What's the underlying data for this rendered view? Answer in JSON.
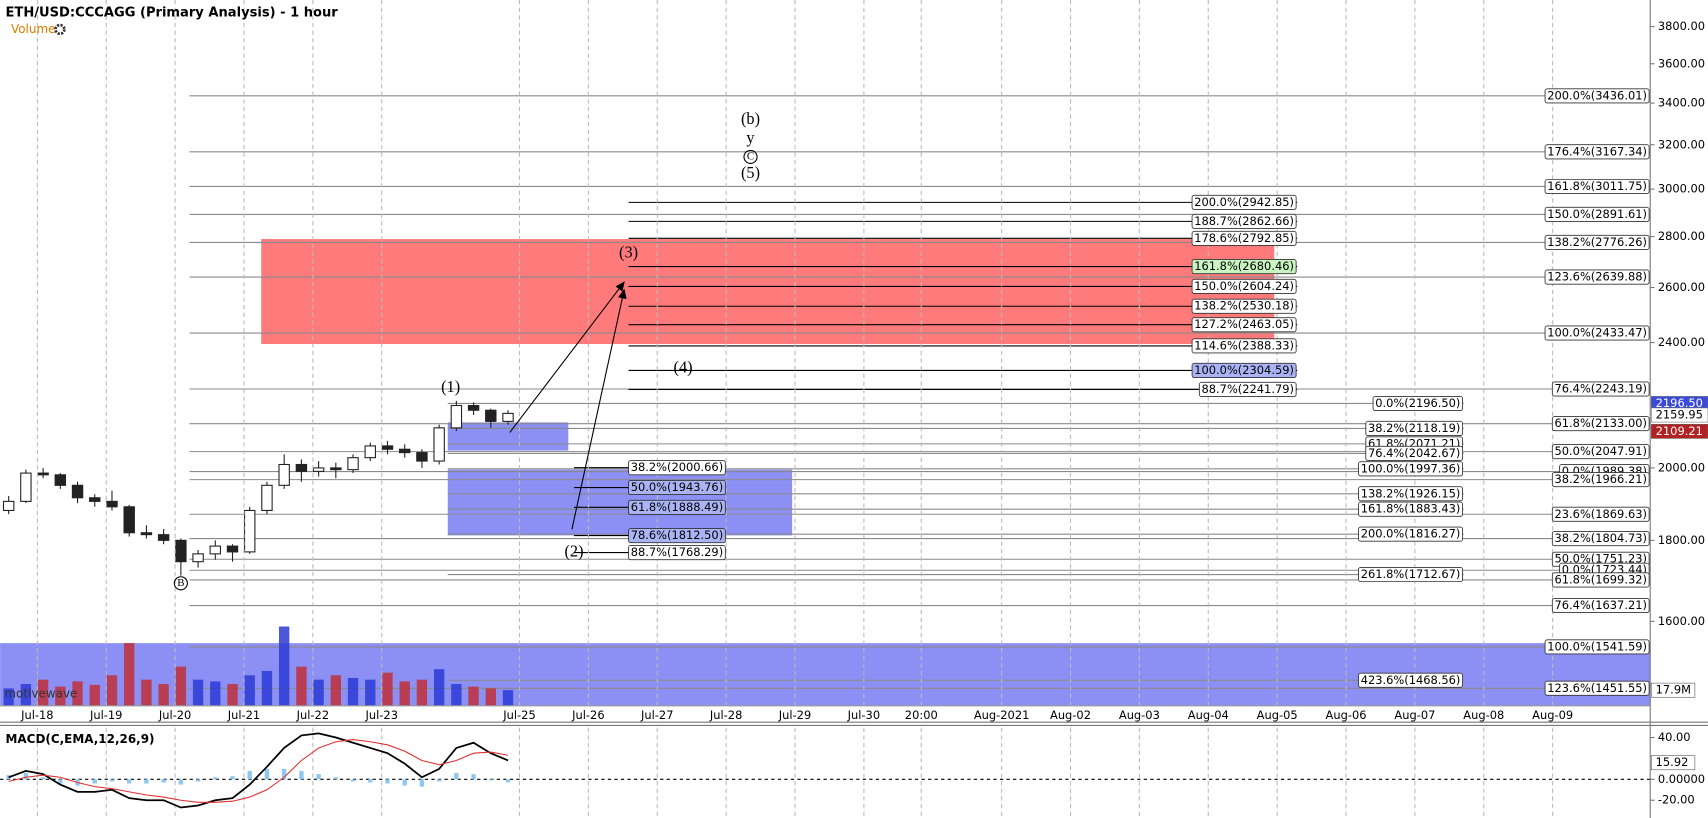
{
  "chart_data": {
    "type": "candlestick",
    "title": "ETH/USD:CCCAGG (Primary Analysis) - 1 hour",
    "volume_label": "Volume",
    "watermark": "motivewave",
    "log_scale": true,
    "xlim": [
      "2021-07-17T11:00",
      "2021-08-10T10:00"
    ],
    "xticks": [
      {
        "value": "2021-07-18T00:00",
        "label": "Jul-18"
      },
      {
        "value": "2021-07-19T00:00",
        "label": "Jul-19"
      },
      {
        "value": "2021-07-20T00:00",
        "label": "Jul-20"
      },
      {
        "value": "2021-07-21T00:00",
        "label": "Jul-21"
      },
      {
        "value": "2021-07-22T00:00",
        "label": "Jul-22"
      },
      {
        "value": "2021-07-23T00:00",
        "label": "Jul-23"
      },
      {
        "value": "2021-07-25T00:00",
        "label": "Jul-25"
      },
      {
        "value": "2021-07-26T00:00",
        "label": "Jul-26"
      },
      {
        "value": "2021-07-27T00:00",
        "label": "Jul-27"
      },
      {
        "value": "2021-07-28T00:00",
        "label": "Jul-28"
      },
      {
        "value": "2021-07-29T00:00",
        "label": "Jul-29"
      },
      {
        "value": "2021-07-30T00:00",
        "label": "Jul-30"
      },
      {
        "value": "2021-07-30T20:00",
        "label": "20:00"
      },
      {
        "value": "2021-08-01T00:00",
        "label": "Aug-2021"
      },
      {
        "value": "2021-08-02T00:00",
        "label": "Aug-02"
      },
      {
        "value": "2021-08-03T00:00",
        "label": "Aug-03"
      },
      {
        "value": "2021-08-04T00:00",
        "label": "Aug-04"
      },
      {
        "value": "2021-08-05T00:00",
        "label": "Aug-05"
      },
      {
        "value": "2021-08-06T00:00",
        "label": "Aug-06"
      },
      {
        "value": "2021-08-07T00:00",
        "label": "Aug-07"
      },
      {
        "value": "2021-08-08T00:00",
        "label": "Aug-08"
      },
      {
        "value": "2021-08-09T00:00",
        "label": "Aug-09"
      }
    ],
    "ylim": [
      1415,
      3950
    ],
    "yticks": [
      {
        "value": 1600,
        "label": "1600.00"
      },
      {
        "value": 1800,
        "label": "1800.00"
      },
      {
        "value": 2000,
        "label": "2000.00"
      },
      {
        "value": 2400,
        "label": "2400.00"
      },
      {
        "value": 2600,
        "label": "2600.00"
      },
      {
        "value": 2800,
        "label": "2800.00"
      },
      {
        "value": 3000,
        "label": "3000.00"
      },
      {
        "value": 3200,
        "label": "3200.00"
      },
      {
        "value": 3400,
        "label": "3400.00"
      },
      {
        "value": 3600,
        "label": "3600.00"
      },
      {
        "value": 3800,
        "label": "3800.00"
      }
    ],
    "x": [
      "2021-07-17T14:00",
      "2021-07-17T20:00",
      "2021-07-18T02:00",
      "2021-07-18T08:00",
      "2021-07-18T14:00",
      "2021-07-18T20:00",
      "2021-07-19T02:00",
      "2021-07-19T08:00",
      "2021-07-19T14:00",
      "2021-07-19T20:00",
      "2021-07-20T02:00",
      "2021-07-20T08:00",
      "2021-07-20T14:00",
      "2021-07-20T20:00",
      "2021-07-21T02:00",
      "2021-07-21T08:00",
      "2021-07-21T14:00",
      "2021-07-21T20:00",
      "2021-07-22T02:00",
      "2021-07-22T08:00",
      "2021-07-22T14:00",
      "2021-07-22T20:00",
      "2021-07-23T02:00",
      "2021-07-23T08:00",
      "2021-07-23T14:00",
      "2021-07-23T20:00",
      "2021-07-24T02:00",
      "2021-07-24T08:00",
      "2021-07-24T14:00",
      "2021-07-24T20:00"
    ],
    "open": [
      1880,
      1905,
      1985,
      1980,
      1950,
      1915,
      1905,
      1890,
      1820,
      1815,
      1800,
      1745,
      1765,
      1785,
      1770,
      1880,
      1950,
      2010,
      1990,
      2000,
      1995,
      2030,
      2065,
      2055,
      2045,
      2020,
      2120,
      2190,
      2175,
      2140
    ],
    "high": [
      1920,
      1995,
      2000,
      1985,
      1960,
      1925,
      1935,
      1895,
      1840,
      1830,
      1805,
      1775,
      1800,
      1790,
      1890,
      1960,
      2040,
      2025,
      2020,
      2015,
      2040,
      2075,
      2080,
      2070,
      2055,
      2130,
      2205,
      2200,
      2180,
      2175
    ],
    "low": [
      1870,
      1900,
      1970,
      1940,
      1900,
      1890,
      1880,
      1810,
      1805,
      1790,
      1710,
      1730,
      1750,
      1745,
      1765,
      1870,
      1940,
      1960,
      1975,
      1970,
      1985,
      2020,
      2040,
      2030,
      2000,
      2010,
      2110,
      2160,
      2120,
      2130
    ],
    "close": [
      1905,
      1985,
      1980,
      1950,
      1915,
      1905,
      1890,
      1820,
      1815,
      1800,
      1745,
      1765,
      1785,
      1770,
      1880,
      1950,
      2010,
      1990,
      2000,
      1995,
      2030,
      2065,
      2055,
      2045,
      2020,
      2120,
      2190,
      2175,
      2140,
      2165
    ],
    "candle_color": "#222222",
    "volume": {
      "values": [
        20,
        25,
        30,
        22,
        28,
        24,
        35,
        72,
        30,
        25,
        45,
        30,
        28,
        25,
        35,
        40,
        91,
        45,
        30,
        35,
        32,
        30,
        38,
        28,
        30,
        42,
        25,
        22,
        20,
        18
      ],
      "ylim": [
        0,
        100
      ],
      "up_color": "#2b3bd6",
      "down_color": "#c0303a",
      "marker": {
        "value": 17.9,
        "label": "17.9M"
      }
    },
    "price_markers": [
      {
        "value": 2196.5,
        "label": "2196.50",
        "color": "#3b4bd8"
      },
      {
        "value": 2159.95,
        "label": "2159.95",
        "color": "#ffffff"
      },
      {
        "value": 2109.21,
        "label": "2109.21",
        "color": "#b22222"
      }
    ],
    "zones": [
      {
        "start": "2021-07-21T06:00",
        "end": "2021-08-04T23:00",
        "top": 2790,
        "bottom": 2395,
        "color": "#ff5a5a"
      },
      {
        "start": "2021-07-23T23:00",
        "end": "2021-07-25T17:00",
        "top": 2137,
        "bottom": 2051,
        "color": "#6f73f0"
      },
      {
        "start": "2021-07-23T23:00",
        "end": "2021-07-28T23:00",
        "top": 1995,
        "bottom": 1813,
        "color": "#6f73f0"
      },
      {
        "start": "2021-07-17T11:00",
        "end": "2021-08-10T10:00",
        "top": 1550,
        "bottom": 1415,
        "color": "#6f73f0"
      }
    ],
    "fib_groups": [
      {
        "start": "2021-07-20T05:00",
        "end": "2021-08-10T10:00",
        "line_color": "#8a8a8a",
        "label_anchor": "end",
        "levels": [
          {
            "value": 3436.01,
            "label": "200.0%(3436.01)"
          },
          {
            "value": 3167.34,
            "label": "176.4%(3167.34)"
          },
          {
            "value": 3011.75,
            "label": "161.8%(3011.75)"
          },
          {
            "value": 2891.61,
            "label": "150.0%(2891.61)"
          },
          {
            "value": 2776.26,
            "label": "138.2%(2776.26)"
          },
          {
            "value": 2639.88,
            "label": "123.6%(2639.88)"
          },
          {
            "value": 2433.47,
            "label": "100.0%(2433.47)"
          },
          {
            "value": 2243.19,
            "label": "76.4%(2243.19)"
          },
          {
            "value": 2133,
            "label": "61.8%(2133.00)"
          },
          {
            "value": 2047.91,
            "label": "50.0%(2047.91)"
          },
          {
            "value": 1989.38,
            "label": "0.0%(1989.38)"
          },
          {
            "value": 1966.21,
            "label": "38.2%(1966.21)"
          },
          {
            "value": 1869.63,
            "label": "23.6%(1869.63)"
          },
          {
            "value": 1804.73,
            "label": "38.2%(1804.73)"
          },
          {
            "value": 1751.23,
            "label": "50.0%(1751.23)"
          },
          {
            "value": 1723.44,
            "label": "0.0%(1723.44)"
          },
          {
            "value": 1699.32,
            "label": "61.8%(1699.32)"
          },
          {
            "value": 1637.21,
            "label": "76.4%(1637.21)"
          },
          {
            "value": 1541.59,
            "label": "100.0%(1541.59)"
          },
          {
            "value": 1451.55,
            "label": "123.6%(1451.55)"
          }
        ]
      },
      {
        "start": "2021-07-23T23:00",
        "end": "2021-08-07T17:00",
        "line_color": "#8a8a8a",
        "label_anchor": "end",
        "levels": [
          {
            "value": 2196.5,
            "label": "0.0%(2196.50)"
          },
          {
            "value": 2118.19,
            "label": "38.2%(2118.19)"
          },
          {
            "value": 2071.21,
            "label": "61.8%(2071.21)"
          },
          {
            "value": 2042.67,
            "label": "76.4%(2042.67)"
          },
          {
            "value": 1997.36,
            "label": "100.0%(1997.36)"
          },
          {
            "value": 1926.15,
            "label": "138.2%(1926.15)"
          },
          {
            "value": 1883.43,
            "label": "161.8%(1883.43)"
          },
          {
            "value": 1816.27,
            "label": "200.0%(1816.27)"
          },
          {
            "value": 1712.67,
            "label": "261.8%(1712.67)"
          },
          {
            "value": 1468.56,
            "label": "423.6%(1468.56)"
          }
        ]
      },
      {
        "start": "2021-07-26T14:00",
        "end": "2021-08-05T07:00",
        "line_color": "#000000",
        "label_anchor": "end",
        "levels": [
          {
            "value": 2942.85,
            "label": "200.0%(2942.85)"
          },
          {
            "value": 2862.66,
            "label": "188.7%(2862.66)"
          },
          {
            "value": 2792.85,
            "label": "178.6%(2792.85)"
          },
          {
            "value": 2680.46,
            "label": "161.8%(2680.46)",
            "fill": "#c8f5c0"
          },
          {
            "value": 2604.24,
            "label": "150.0%(2604.24)"
          },
          {
            "value": 2530.18,
            "label": "138.2%(2530.18)"
          },
          {
            "value": 2463.05,
            "label": "127.2%(2463.05)"
          },
          {
            "value": 2388.33,
            "label": "114.6%(2388.33)"
          },
          {
            "value": 2304.59,
            "label": "100.0%(2304.59)",
            "fill": "#aab4f5"
          },
          {
            "value": 2241.79,
            "label": "88.7%(2241.79)"
          }
        ]
      },
      {
        "start": "2021-07-25T19:00",
        "end": "2021-07-26T14:00",
        "line_color": "#000000",
        "label_anchor": "start",
        "levels": [
          {
            "value": 2000.66,
            "label": "38.2%(2000.66)"
          },
          {
            "value": 1943.76,
            "label": "50.0%(1943.76)",
            "fill": "#aab4f5"
          },
          {
            "value": 1888.49,
            "label": "61.8%(1888.49)",
            "fill": "#aab4f5"
          },
          {
            "value": 1812.5,
            "label": "78.6%(1812.50)",
            "fill": "#aab4f5"
          },
          {
            "value": 1768.29,
            "label": "88.7%(1768.29)"
          }
        ]
      }
    ],
    "waves": [
      {
        "text": "(1)",
        "x": "2021-07-24T00:00",
        "y": 2245
      },
      {
        "text": "(2)",
        "x": "2021-07-25T19:00",
        "y": 1768
      },
      {
        "text": "(3)",
        "x": "2021-07-26T14:00",
        "y": 2731
      },
      {
        "text": "(4)",
        "x": "2021-07-27T09:00",
        "y": 2310
      },
      {
        "text": "(b)",
        "x": "2021-07-28T08:30",
        "y": 3317
      },
      {
        "text": "y",
        "x": "2021-07-28T08:30",
        "y": 3225
      },
      {
        "text": "C",
        "x": "2021-07-28T08:30",
        "y": 3144,
        "circled": true
      },
      {
        "text": "(5)",
        "x": "2021-07-28T08:30",
        "y": 3065
      },
      {
        "text": "B",
        "x": "2021-07-20T02:00",
        "y": 1691,
        "circled": true
      }
    ],
    "macd": {
      "title": "MACD(C,EMA,12,26,9)",
      "ylim": [
        -37,
        49.5
      ],
      "yticks": [
        {
          "value": 40,
          "label": "40.00"
        },
        {
          "value": 0,
          "label": "0.00000"
        },
        {
          "value": -20,
          "label": "-20.00"
        }
      ],
      "marker": {
        "value": 15.92,
        "label": "15.92"
      },
      "lines": [
        {
          "color": "#000000",
          "values": [
            2,
            8,
            5,
            -5,
            -12,
            -12,
            -10,
            -18,
            -20,
            -20,
            -27,
            -25,
            -20,
            -18,
            -5,
            12,
            30,
            42,
            44,
            40,
            35,
            30,
            25,
            15,
            2,
            10,
            30,
            35,
            25,
            18
          ]
        },
        {
          "color": "#e03030",
          "values": [
            -2,
            2,
            4,
            2,
            -3,
            -7,
            -9,
            -12,
            -15,
            -17,
            -20,
            -22,
            -22,
            -21,
            -17,
            -10,
            2,
            18,
            30,
            36,
            38,
            36,
            33,
            27,
            18,
            14,
            18,
            25,
            26,
            23
          ]
        }
      ],
      "histogram": {
        "color": "#8ec8f0",
        "values": [
          4,
          6,
          2,
          -4,
          -6,
          -4,
          -2,
          -4,
          -4,
          -3,
          -5,
          -2,
          2,
          3,
          8,
          10,
          10,
          8,
          5,
          2,
          -2,
          -3,
          -4,
          -6,
          -7,
          -2,
          6,
          5,
          -1,
          -3
        ]
      }
    }
  }
}
